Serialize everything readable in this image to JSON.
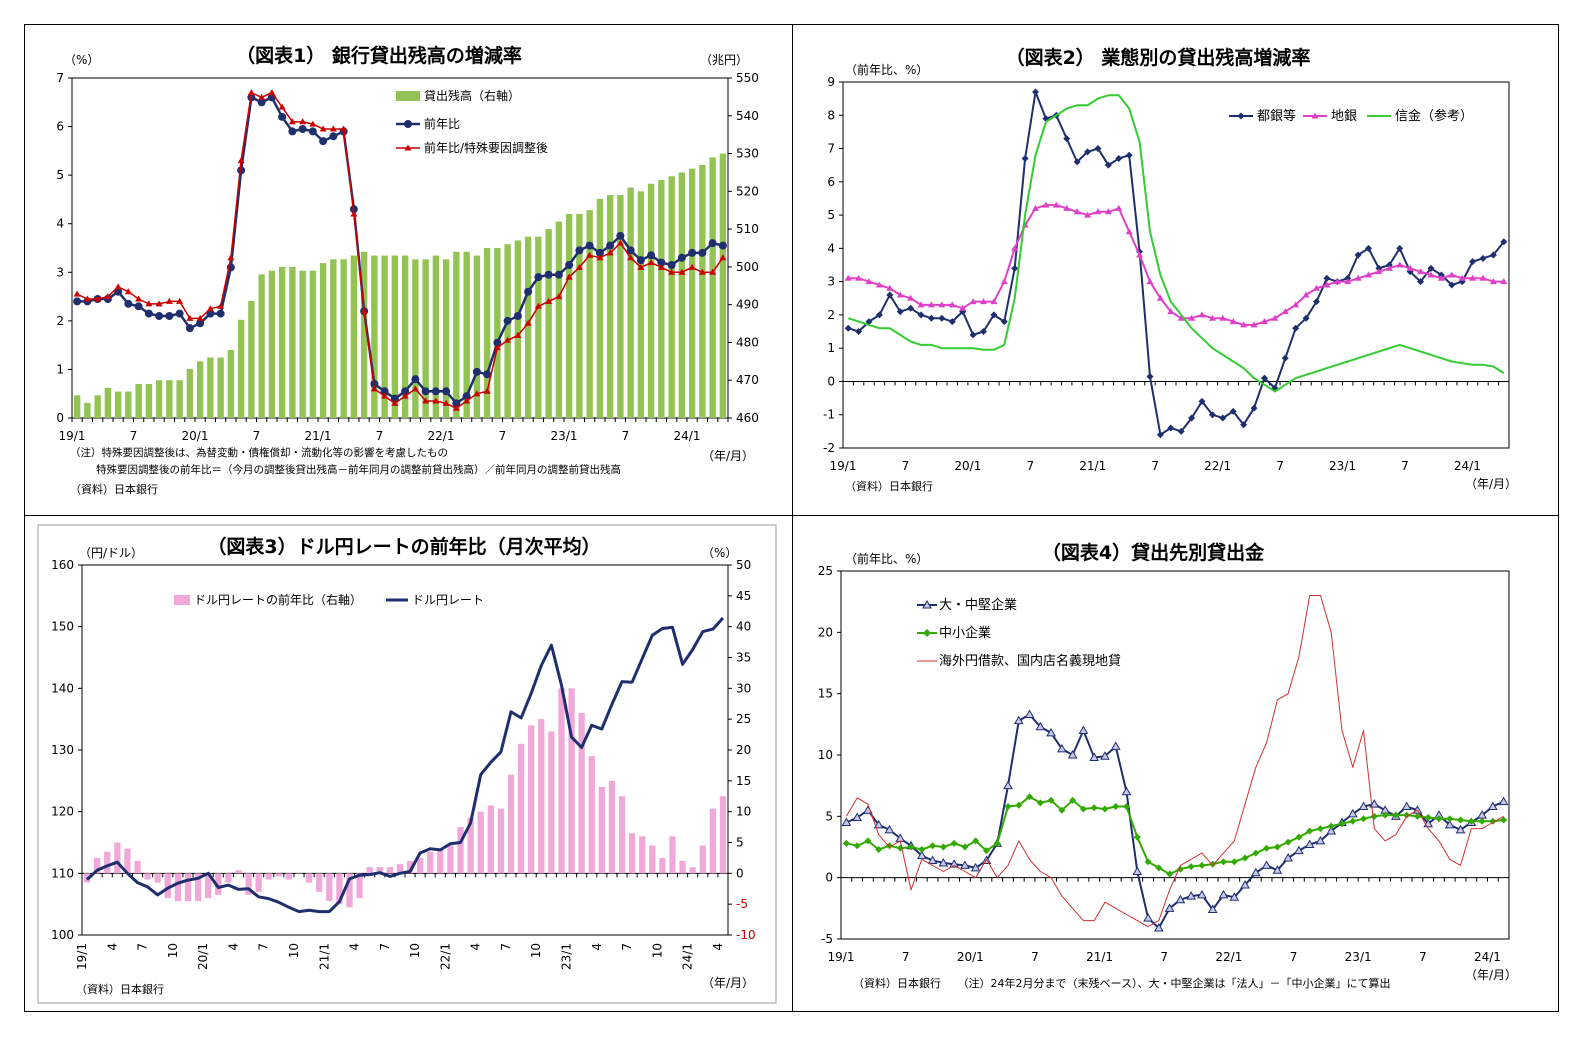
{
  "colors": {
    "green_bar": "#92c353",
    "navy": "#1f2f6e",
    "red": "#cc0000",
    "magenta": "#e040c8",
    "lime": "#33cc33",
    "pink_bar": "#f0a8d8",
    "green_diamond": "#33aa00",
    "thin_red": "#d03030"
  },
  "charts": [
    {
      "id": "p1",
      "chart_data": {
        "type": "bar+line",
        "title": "（図表1） 銀行貸出残高の増減率",
        "yunit_left": "（%）",
        "yunit_right": "（兆円）",
        "xunit": "（年/月）",
        "ylim_left": [
          0,
          7
        ],
        "ylim_right": [
          460,
          550
        ],
        "yticks_left": [
          "0",
          "1",
          "2",
          "3",
          "4",
          "5",
          "6",
          "7"
        ],
        "yticks_right": [
          "460",
          "470",
          "480",
          "490",
          "500",
          "510",
          "520",
          "530",
          "540",
          "550"
        ],
        "xticks": [
          "19/1",
          "7",
          "20/1",
          "7",
          "21/1",
          "7",
          "22/1",
          "7",
          "23/1",
          "7",
          "24/1"
        ],
        "xtick_index": [
          0,
          6,
          12,
          18,
          24,
          30,
          36,
          42,
          48,
          54,
          60
        ],
        "n": 64,
        "legend": [
          "貸出残高（右軸）",
          "前年比",
          "前年比/特殊要因調整後"
        ],
        "series": [
          {
            "name": "貸出残高（右軸）",
            "axis": "right",
            "values": [
              466,
              464,
              466,
              468,
              467,
              467,
              469,
              469,
              470,
              470,
              470,
              473,
              475,
              476,
              476,
              478,
              486,
              491,
              498,
              499,
              500,
              500,
              499,
              499,
              501,
              502,
              502,
              503,
              504,
              503,
              503,
              503,
              503,
              502,
              502,
              503,
              502,
              504,
              504,
              503,
              505,
              505,
              506,
              507,
              508,
              508,
              510,
              512,
              514,
              514,
              515,
              518,
              519,
              519,
              521,
              520,
              522,
              523,
              524,
              525,
              526,
              527,
              529,
              530
            ]
          },
          {
            "name": "前年比",
            "axis": "left",
            "values": [
              2.4,
              2.4,
              2.45,
              2.45,
              2.6,
              2.35,
              2.3,
              2.15,
              2.1,
              2.1,
              2.15,
              1.85,
              1.95,
              2.15,
              2.15,
              3.1,
              5.1,
              6.6,
              6.5,
              6.6,
              6.2,
              5.9,
              5.95,
              5.9,
              5.7,
              5.8,
              5.9,
              4.3,
              2.2,
              0.7,
              0.55,
              0.4,
              0.55,
              0.8,
              0.55,
              0.55,
              0.55,
              0.3,
              0.45,
              0.95,
              0.9,
              1.55,
              2.0,
              2.1,
              2.6,
              2.9,
              2.95,
              2.95,
              3.15,
              3.45,
              3.55,
              3.4,
              3.55,
              3.75,
              3.45,
              3.25,
              3.35,
              3.2,
              3.15,
              3.3,
              3.4,
              3.4,
              3.6,
              3.55
            ]
          },
          {
            "name": "前年比/特殊要因調整後",
            "axis": "left",
            "values": [
              2.55,
              2.45,
              2.45,
              2.5,
              2.7,
              2.6,
              2.45,
              2.35,
              2.35,
              2.4,
              2.4,
              2.05,
              2.05,
              2.25,
              2.3,
              3.3,
              5.3,
              6.7,
              6.6,
              6.7,
              6.4,
              6.1,
              6.1,
              6.05,
              5.95,
              5.95,
              5.95,
              4.2,
              2.2,
              0.6,
              0.45,
              0.3,
              0.45,
              0.6,
              0.35,
              0.35,
              0.3,
              0.2,
              0.35,
              0.5,
              0.55,
              1.45,
              1.6,
              1.7,
              1.95,
              2.3,
              2.4,
              2.5,
              2.9,
              3.1,
              3.35,
              3.3,
              3.4,
              3.6,
              3.3,
              3.1,
              3.2,
              3.1,
              3.0,
              3.0,
              3.1,
              3.0,
              3.0,
              3.3
            ]
          }
        ],
        "notes": [
          "（注）特殊要因調整後は、為替変動・債権償却・流動化等の影響を考慮したもの",
          "特殊要因調整後の前年比＝（今月の調整後貸出残高－前年同月の調整前貸出残高）／前年同月の調整前貸出残高",
          "（資料）日本銀行"
        ]
      }
    },
    {
      "id": "p2",
      "chart_data": {
        "type": "line",
        "title": "（図表2） 業態別の貸出残高増減率",
        "yunit_left": "（前年比、%）",
        "xunit": "（年/月）",
        "ylim_left": [
          -2,
          9
        ],
        "yticks_left": [
          "-2",
          "-1",
          "0",
          "1",
          "2",
          "3",
          "4",
          "5",
          "6",
          "7",
          "8",
          "9"
        ],
        "xticks": [
          "19/1",
          "7",
          "20/1",
          "7",
          "21/1",
          "7",
          "22/1",
          "7",
          "23/1",
          "7",
          "24/1"
        ],
        "xtick_index": [
          0,
          6,
          12,
          18,
          24,
          30,
          36,
          42,
          48,
          54,
          60
        ],
        "n": 64,
        "legend": [
          "都銀等",
          "地銀",
          "信金（参考）"
        ],
        "series": [
          {
            "name": "都銀等",
            "values": [
              1.6,
              1.5,
              1.8,
              2.0,
              2.6,
              2.1,
              2.2,
              2.0,
              1.9,
              1.9,
              1.8,
              2.1,
              1.4,
              1.5,
              2.0,
              1.8,
              3.4,
              6.7,
              8.7,
              7.9,
              8.0,
              7.3,
              6.6,
              6.9,
              7.0,
              6.5,
              6.7,
              6.8,
              3.9,
              0.15,
              -1.6,
              -1.4,
              -1.5,
              -1.1,
              -0.6,
              -1.0,
              -1.1,
              -0.9,
              -1.3,
              -0.8,
              0.1,
              -0.2,
              0.7,
              1.6,
              1.9,
              2.4,
              3.1,
              3.0,
              3.1,
              3.8,
              4.0,
              3.4,
              3.5,
              4.0,
              3.3,
              3.0,
              3.4,
              3.2,
              2.9,
              3.0,
              3.6,
              3.7,
              3.8,
              4.2
            ]
          },
          {
            "name": "地銀",
            "values": [
              3.1,
              3.1,
              3.0,
              2.9,
              2.8,
              2.6,
              2.5,
              2.3,
              2.3,
              2.3,
              2.3,
              2.2,
              2.4,
              2.4,
              2.4,
              3.0,
              4.0,
              4.7,
              5.2,
              5.3,
              5.3,
              5.2,
              5.1,
              5.0,
              5.1,
              5.1,
              5.2,
              4.5,
              3.8,
              3.0,
              2.5,
              2.1,
              1.9,
              1.9,
              2.0,
              1.9,
              1.9,
              1.8,
              1.7,
              1.7,
              1.8,
              1.9,
              2.1,
              2.3,
              2.6,
              2.8,
              2.9,
              3.0,
              3.0,
              3.1,
              3.2,
              3.3,
              3.4,
              3.5,
              3.4,
              3.3,
              3.2,
              3.1,
              3.2,
              3.1,
              3.1,
              3.1,
              3.0,
              3.0
            ]
          },
          {
            "name": "信金（参考）",
            "values": [
              1.9,
              1.8,
              1.7,
              1.6,
              1.6,
              1.4,
              1.2,
              1.1,
              1.1,
              1.0,
              1.0,
              1.0,
              1.0,
              0.95,
              0.95,
              1.1,
              2.5,
              5.0,
              6.8,
              7.8,
              8.0,
              8.2,
              8.3,
              8.3,
              8.5,
              8.6,
              8.6,
              8.2,
              7.2,
              4.5,
              3.2,
              2.4,
              2.0,
              1.6,
              1.3,
              1.0,
              0.8,
              0.6,
              0.4,
              0.1,
              -0.1,
              -0.3,
              -0.1,
              0.1,
              0.2,
              0.3,
              0.4,
              0.5,
              0.6,
              0.7,
              0.8,
              0.9,
              1.0,
              1.1,
              1.0,
              0.9,
              0.8,
              0.7,
              0.6,
              0.55,
              0.5,
              0.5,
              0.45,
              0.25
            ]
          }
        ],
        "notes": [
          "（資料）日本銀行"
        ]
      }
    },
    {
      "id": "p3",
      "chart_data": {
        "type": "bar+line",
        "title": "（図表3）ドル円レートの前年比（月次平均）",
        "yunit_left": "（円/ドル）",
        "yunit_right": "（%）",
        "xunit": "（年/月）",
        "ylim_left": [
          100,
          160
        ],
        "ylim_right": [
          -10,
          50
        ],
        "yticks_left": [
          "100",
          "110",
          "120",
          "130",
          "140",
          "150",
          "160"
        ],
        "yticks_right": [
          "-10",
          "-5",
          "0",
          "5",
          "10",
          "15",
          "20",
          "25",
          "30",
          "35",
          "40",
          "45",
          "50"
        ],
        "xticks": [
          "19/1",
          "4",
          "7",
          "10",
          "20/1",
          "4",
          "7",
          "10",
          "21/1",
          "4",
          "7",
          "10",
          "22/1",
          "4",
          "7",
          "10",
          "23/1",
          "4",
          "7",
          "10",
          "24/1",
          "4"
        ],
        "xtick_index": [
          0,
          3,
          6,
          9,
          12,
          15,
          18,
          21,
          24,
          27,
          30,
          33,
          36,
          39,
          42,
          45,
          48,
          51,
          54,
          57,
          60,
          63
        ],
        "n": 64,
        "legend": [
          "ドル円レートの前年比（右軸）",
          "ドル円レート"
        ],
        "series": [
          {
            "name": "ドル円レートの前年比（右軸）",
            "axis": "right",
            "values": [
              -1.5,
              2.5,
              3.5,
              5,
              4,
              2,
              -1,
              -1.5,
              -4,
              -4.5,
              -4.5,
              -4.5,
              -4,
              -3.5,
              -1.5,
              0.5,
              -3.5,
              -3,
              -1,
              -0.5,
              -1,
              0,
              -1.5,
              -3,
              -4.5,
              -5,
              -5.5,
              -4,
              1,
              1,
              1,
              1.5,
              2,
              2.5,
              3.5,
              4,
              4.5,
              7.5,
              9,
              10,
              11,
              10.5,
              16,
              21,
              24,
              25,
              23,
              30,
              30,
              26,
              19,
              14,
              15,
              12.5,
              6.5,
              6,
              4.5,
              2.5,
              6,
              2,
              1,
              4.5,
              10.5,
              12.5
            ]
          },
          {
            "name": "ドル円レート",
            "axis": "left",
            "values": [
              109,
              110.5,
              111.2,
              111.8,
              110,
              108.5,
              107.8,
              106.5,
              107.6,
              108.4,
              108.9,
              109.2,
              110,
              107.7,
              108.1,
              107.4,
              107.5,
              106.2,
              105.9,
              105.3,
              104.5,
              103.8,
              104,
              103.8,
              103.8,
              105.4,
              109.1,
              109.7,
              109.8,
              110.1,
              109.5,
              110,
              110.3,
              113.3,
              114,
              113.8,
              114.8,
              115,
              118.2,
              126,
              128,
              129.7,
              136.2,
              135.2,
              139.2,
              143.7,
              147,
              140.5,
              132.1,
              130.4,
              134,
              133.4,
              137.4,
              141.1,
              141,
              144.8,
              148.6,
              149.7,
              149.9,
              143.9,
              146.3,
              149.2,
              149.6,
              151.4
            ]
          }
        ],
        "notes": [
          "（資料）日本銀行"
        ]
      }
    },
    {
      "id": "p4",
      "chart_data": {
        "type": "line",
        "title": "（図表4）貸出先別貸出金",
        "yunit_left": "（前年比、%）",
        "xunit": "（年/月）",
        "ylim_left": [
          -5,
          25
        ],
        "yticks_left": [
          "-5",
          "0",
          "5",
          "10",
          "15",
          "20",
          "25"
        ],
        "xticks": [
          "19/1",
          "7",
          "20/1",
          "7",
          "21/1",
          "7",
          "22/1",
          "7",
          "23/1",
          "7",
          "24/1"
        ],
        "xtick_index": [
          0,
          6,
          12,
          18,
          24,
          30,
          36,
          42,
          48,
          54,
          60
        ],
        "n": 62,
        "legend": [
          "大・中堅企業",
          "中小企業",
          "海外円借款、国内店名義現地貸"
        ],
        "series": [
          {
            "name": "大・中堅企業",
            "values": [
              4.5,
              4.9,
              5.5,
              4.3,
              3.9,
              3.2,
              2.6,
              1.8,
              1.4,
              1.2,
              1.1,
              1.0,
              0.8,
              1.4,
              2.8,
              7.5,
              12.8,
              13.3,
              12.3,
              11.8,
              10.5,
              10.0,
              12.0,
              9.8,
              9.9,
              10.7,
              7.0,
              0.5,
              -3.3,
              -4.1,
              -2.5,
              -1.8,
              -1.5,
              -1.4,
              -2.6,
              -1.4,
              -1.6,
              -0.6,
              0.4,
              1.0,
              0.6,
              1.6,
              2.2,
              2.7,
              3.0,
              3.8,
              4.5,
              5.2,
              5.8,
              6.0,
              5.5,
              5.0,
              5.8,
              5.5,
              4.4,
              5.1,
              4.3,
              3.9,
              4.5,
              5.1,
              5.8,
              6.2
            ]
          },
          {
            "name": "中小企業",
            "values": [
              2.8,
              2.6,
              3.0,
              2.3,
              2.6,
              2.4,
              2.5,
              2.3,
              2.6,
              2.5,
              2.8,
              2.5,
              3.0,
              2.2,
              2.8,
              5.8,
              5.9,
              6.6,
              6.1,
              6.3,
              5.5,
              6.3,
              5.6,
              5.7,
              5.6,
              5.8,
              5.8,
              3.3,
              1.3,
              0.8,
              0.3,
              0.7,
              0.9,
              1.0,
              1.1,
              1.3,
              1.3,
              1.6,
              2.0,
              2.4,
              2.5,
              2.9,
              3.3,
              3.8,
              4.0,
              4.2,
              4.4,
              4.6,
              4.8,
              5.0,
              5.1,
              5.1,
              5.1,
              5.0,
              4.9,
              4.8,
              4.8,
              4.7,
              4.6,
              4.6,
              4.6,
              4.7
            ]
          },
          {
            "name": "海外円借款、国内店名義現地貸",
            "values": [
              5.0,
              6.5,
              6.0,
              3.5,
              2.5,
              3.0,
              -1.0,
              1.5,
              1.0,
              0.5,
              1.0,
              0.5,
              0.0,
              1.5,
              0.0,
              1.0,
              3.0,
              1.5,
              0.5,
              0.0,
              -1.5,
              -2.5,
              -3.5,
              -3.5,
              -2.0,
              -2.5,
              -3.0,
              -3.5,
              -4.0,
              -3.5,
              -1.0,
              1.0,
              1.5,
              2.0,
              1.0,
              2.0,
              3.0,
              6.0,
              9.0,
              11.0,
              14.5,
              15.0,
              18.0,
              23.0,
              23.0,
              20.0,
              12.0,
              9.0,
              12.0,
              4.0,
              3.0,
              3.5,
              5.0,
              5.5,
              4.0,
              3.0,
              1.5,
              1.0,
              4.0,
              4.0,
              4.5,
              5.0
            ]
          }
        ],
        "notes": [
          "（資料）日本銀行　　（注）24年2月分まで（末残ベース）、大・中堅企業は「法人」－「中小企業」にて算出"
        ]
      }
    }
  ]
}
